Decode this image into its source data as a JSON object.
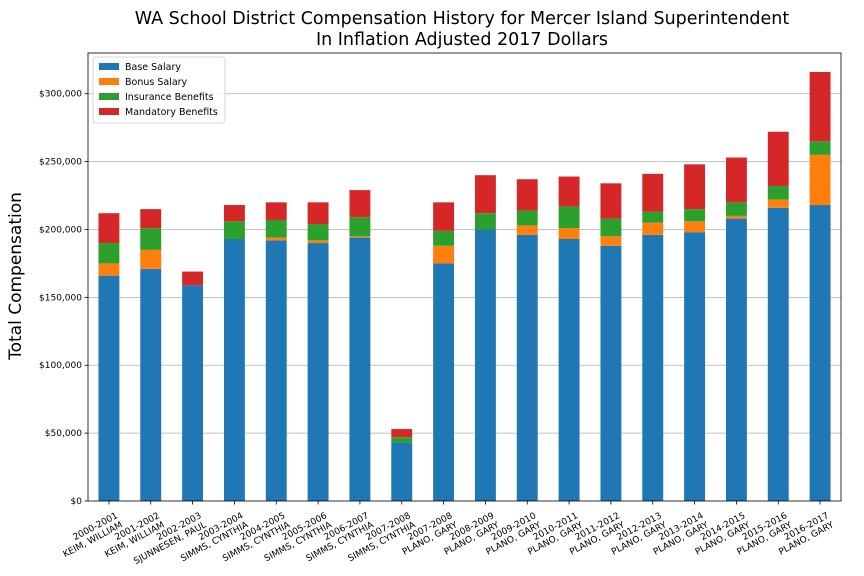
{
  "chart_data": {
    "type": "bar",
    "stacked": true,
    "title": "WA School District Compensation History for Mercer Island Superintendent",
    "subtitle": "In Inflation Adjusted 2017 Dollars",
    "xlabel": "",
    "ylabel": "Total Compensation",
    "ylim": [
      0,
      330000
    ],
    "yticks": [
      "$0",
      "$50,000",
      "$100,000",
      "$150,000",
      "$200,000",
      "$250,000",
      "$300,000"
    ],
    "grid": "horizontal",
    "legend_position": "top-left",
    "categories": [
      [
        "2000-2001",
        "KEIM, WILLIAM"
      ],
      [
        "2001-2002",
        "KEIM, WILLIAM"
      ],
      [
        "2002-2003",
        "SJUNNESEN, PAUL"
      ],
      [
        "2003-2004",
        "SIMMS, CYNTHIA"
      ],
      [
        "2004-2005",
        "SIMMS, CYNTHIA"
      ],
      [
        "2005-2006",
        "SIMMS, CYNTHIA"
      ],
      [
        "2006-2007",
        "SIMMS, CYNTHIA"
      ],
      [
        "2007-2008",
        "SIMMS, CYNTHIA"
      ],
      [
        "2007-2008",
        "PLANO, GARY"
      ],
      [
        "2008-2009",
        "PLANO, GARY"
      ],
      [
        "2009-2010",
        "PLANO, GARY"
      ],
      [
        "2010-2011",
        "PLANO, GARY"
      ],
      [
        "2011-2012",
        "PLANO, GARY"
      ],
      [
        "2012-2013",
        "PLANO, GARY"
      ],
      [
        "2013-2014",
        "PLANO, GARY"
      ],
      [
        "2014-2015",
        "PLANO, GARY"
      ],
      [
        "2015-2016",
        "PLANO, GARY"
      ],
      [
        "2016-2017",
        "PLANO, GARY"
      ]
    ],
    "series": [
      {
        "name": "Base Salary",
        "color": "#1f77b4",
        "values": [
          166000,
          171000,
          159000,
          193000,
          192000,
          190000,
          194000,
          43000,
          175000,
          200000,
          196000,
          193000,
          188000,
          196000,
          198000,
          208000,
          216000,
          218000
        ]
      },
      {
        "name": "Bonus Salary",
        "color": "#ff7f0e",
        "values": [
          9000,
          14000,
          0,
          0,
          2000,
          2000,
          1000,
          0,
          13000,
          0,
          7000,
          8000,
          7000,
          9000,
          8000,
          2000,
          6000,
          37000
        ]
      },
      {
        "name": "Insurance Benefits",
        "color": "#2ca02c",
        "values": [
          15000,
          16000,
          0,
          13000,
          13000,
          12000,
          14000,
          4000,
          11000,
          12000,
          11000,
          16000,
          13000,
          8000,
          9000,
          10000,
          10000,
          10000
        ]
      },
      {
        "name": "Mandatory Benefits",
        "color": "#d62728",
        "values": [
          22000,
          14000,
          10000,
          12000,
          13000,
          16000,
          20000,
          6000,
          21000,
          28000,
          23000,
          22000,
          26000,
          28000,
          33000,
          33000,
          40000,
          51000
        ]
      }
    ]
  }
}
